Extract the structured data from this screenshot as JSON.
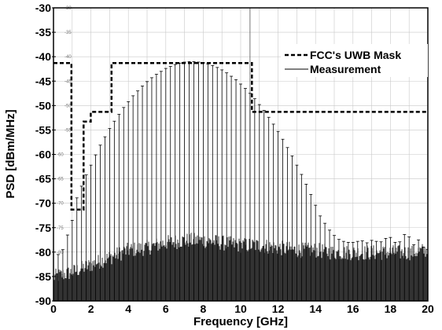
{
  "chart_data": {
    "type": "line",
    "xlabel": "Frequency [GHz]",
    "ylabel": "PSD [dBm/MHz]",
    "xlim": [
      0,
      20
    ],
    "ylim": [
      -90,
      -30
    ],
    "xticks": [
      0,
      2,
      4,
      6,
      8,
      10,
      12,
      14,
      16,
      18,
      20
    ],
    "yticks": [
      -30,
      -35,
      -40,
      -45,
      -50,
      -55,
      -60,
      -65,
      -70,
      -75,
      -80,
      -85,
      -90
    ],
    "grid": true,
    "legend_position": "top-right",
    "colors": {
      "mask": "#000000",
      "measurement": "#000000",
      "noise": "#333333"
    },
    "series": [
      {
        "name": "FCC's UWB Mask",
        "style": "dashed",
        "x": [
          0,
          0.96,
          0.96,
          1.61,
          1.61,
          1.99,
          1.99,
          3.1,
          3.1,
          10.6,
          10.6,
          20
        ],
        "y": [
          -41.3,
          -41.3,
          -71.3,
          -71.3,
          -53.3,
          -53.3,
          -51.3,
          -51.3,
          -41.3,
          -41.3,
          -51.3,
          -51.3
        ]
      },
      {
        "name": "Measurement",
        "style": "solid",
        "spectral_lines": {
          "frequency_start_ghz": 0.25,
          "frequency_step_ghz": 0.25,
          "peak_psd_dbm_mhz": [
            -80.5,
            -79.5,
            -76.5,
            -73.5,
            -68.9,
            -66.5,
            -64.2,
            -62.2,
            -60.1,
            -58.1,
            -56.4,
            -54.7,
            -53.2,
            -51.8,
            -50.4,
            -49.2,
            -48.0,
            -47.0,
            -46.0,
            -45.1,
            -44.3,
            -43.6,
            -43.0,
            -42.4,
            -42.0,
            -41.6,
            -41.3,
            -41.1,
            -41.0,
            -41.0,
            -41.1,
            -41.2,
            -41.5,
            -41.8,
            -42.2,
            -42.7,
            -43.3,
            -44.0,
            -44.7,
            -45.6,
            -46.5,
            -47.5,
            -48.6,
            -49.8,
            -51.0,
            -52.4,
            -53.8,
            -55.3,
            -56.9,
            -58.6,
            -60.3,
            -62.2,
            -64.1,
            -66.1,
            -68.2,
            -70.4,
            -72.6,
            -74.1,
            -75.5,
            -76.6,
            -77.4,
            -77.8,
            -78.0,
            -78.0,
            -77.8,
            -77.7,
            -78.1,
            -77.6,
            -77.8,
            -77.9,
            -77.2,
            -77.0,
            -78.0,
            -77.9,
            -76.4,
            -76.9,
            -78.5,
            -77.5,
            -79.0,
            -79.5
          ]
        }
      }
    ],
    "noise_floor": {
      "x": [
        0,
        1,
        2,
        3,
        4,
        5,
        6,
        7,
        8,
        9,
        10,
        11,
        12,
        13,
        14,
        15,
        16,
        17,
        18,
        19,
        20
      ],
      "y": [
        -85.5,
        -84.5,
        -83,
        -81.5,
        -80,
        -79.5,
        -78.5,
        -78,
        -78,
        -78.5,
        -79,
        -79,
        -79.5,
        -80,
        -80,
        -80.5,
        -80.5,
        -80.5,
        -80.5,
        -80.5,
        -80
      ]
    }
  },
  "faint_labels": [
    "-30",
    "-35",
    "-40",
    "-45",
    "-50",
    "-55",
    "-60",
    "-65",
    "-70",
    "-75",
    "-80",
    "-85"
  ]
}
